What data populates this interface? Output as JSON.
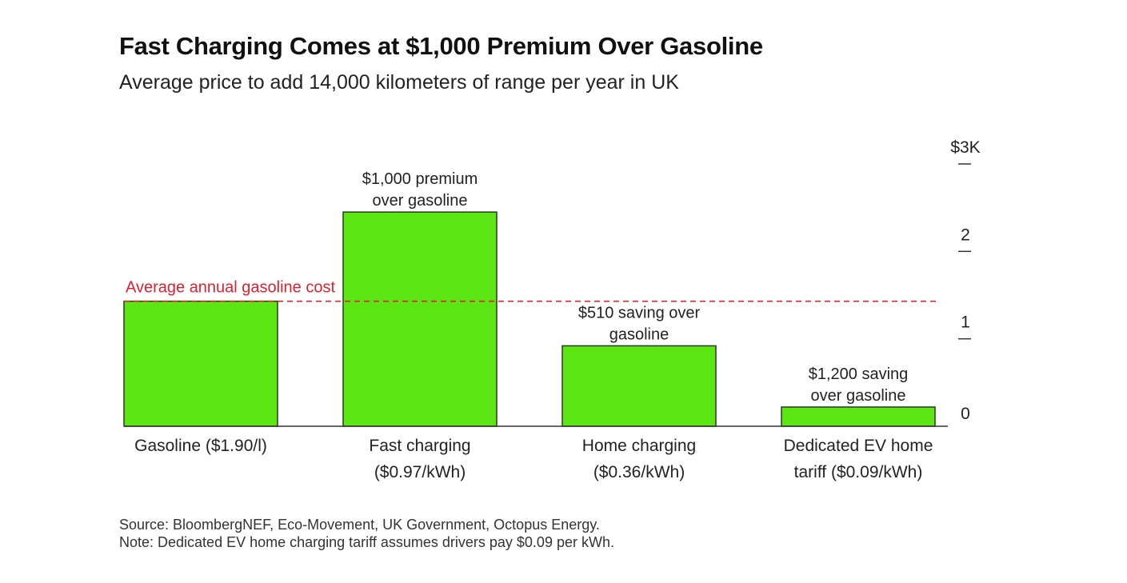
{
  "title": "Fast Charging Comes at $1,000 Premium Over Gasoline",
  "subtitle": "Average price to add 14,000 kilometers of range per year in UK",
  "footer": {
    "source": "Source: BloombergNEF, Eco-Movement, UK Government, Octopus Energy.",
    "note": "Note: Dedicated EV home charging tariff assumes drivers pay $0.09 per kWh."
  },
  "colors": {
    "bar": "#5ce614",
    "bar_stroke": "#2a3a22",
    "reference": "#e0202e",
    "axis": "#333333"
  },
  "chart_data": {
    "type": "bar",
    "title": "Fast Charging Comes at $1,000 Premium Over Gasoline",
    "subtitle": "Average price to add 14,000 kilometers of range per year in UK",
    "xlabel": "",
    "ylabel": "",
    "units": "thousand USD",
    "ylim": [
      0,
      3
    ],
    "y_axis_side": "right",
    "y_ticks": [
      0,
      1,
      2,
      3
    ],
    "y_tick_labels": [
      "0",
      "1",
      "2",
      "$3K"
    ],
    "grid": false,
    "categories": [
      [
        "Gasoline ($1.90/l)"
      ],
      [
        "Fast charging",
        "($0.97/kWh)"
      ],
      [
        "Home charging",
        "($0.36/kWh)"
      ],
      [
        "Dedicated EV home",
        "tariff ($0.09/kWh)"
      ]
    ],
    "values": [
      1.43,
      2.45,
      0.92,
      0.22
    ],
    "annotations": [
      null,
      [
        "$1,000 premium",
        "over gasoline"
      ],
      [
        "$510 saving over",
        "gasoline"
      ],
      [
        "$1,200 saving",
        "over gasoline"
      ]
    ],
    "reference_line": {
      "label": "Average annual gasoline cost",
      "value": 1.43,
      "style": "dashed"
    }
  }
}
